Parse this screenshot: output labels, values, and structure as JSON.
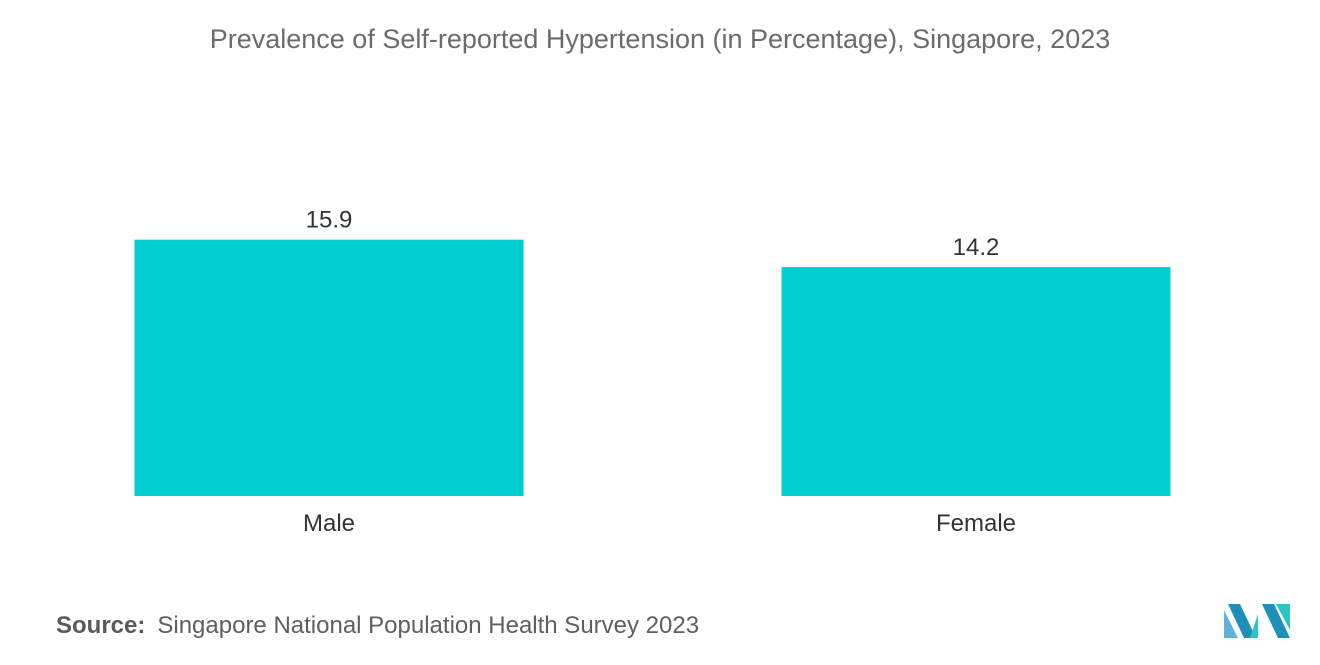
{
  "chart_data": {
    "type": "bar",
    "title": "Prevalence of Self-reported Hypertension (in Percentage), Singapore, 2023",
    "categories": [
      "Male",
      "Female"
    ],
    "values": [
      15.9,
      14.2
    ],
    "value_labels": [
      "15.9",
      "14.2"
    ],
    "ylim": [
      0,
      16.5
    ],
    "grid": false,
    "legend": "none",
    "colors": {
      "bar": "#00ced1",
      "text": "#333333",
      "title": "#6b6b6b"
    }
  },
  "source": {
    "label": "Source:",
    "text": "Singapore National Population Health Survey 2023"
  },
  "logo": {
    "icon": "mordor-logo-icon",
    "colors": [
      "#5fb3d6",
      "#1e8fb8",
      "#2ec4c6"
    ]
  }
}
